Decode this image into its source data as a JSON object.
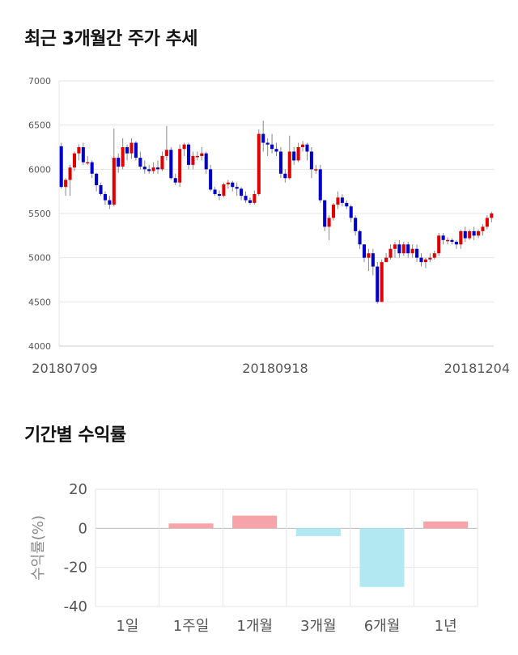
{
  "headings": {
    "stock_trend": "최근 3개월간 주가 추세",
    "period_returns": "기간별 수익률"
  },
  "chart_data": [
    {
      "type": "candlestick",
      "title": "최근 3개월간 주가 추세",
      "ylim": [
        4000,
        7000
      ],
      "y_ticks": [
        4000,
        4500,
        5000,
        5500,
        6000,
        6500,
        7000
      ],
      "x_tick_labels": [
        "20180709",
        "20180918",
        "20181204"
      ],
      "grid": true,
      "colors": {
        "up": "#e00000",
        "down": "#0000cc",
        "wick": "#888888"
      },
      "candles": [
        [
          6260,
          5800,
          6300,
          5780
        ],
        [
          5800,
          5880,
          5900,
          5700
        ],
        [
          5880,
          6020,
          6050,
          5700
        ],
        [
          6020,
          6180,
          6200,
          5980
        ],
        [
          6180,
          6250,
          6280,
          6100
        ],
        [
          6250,
          6080,
          6300,
          6050
        ],
        [
          6080,
          6080,
          6150,
          6050
        ],
        [
          6080,
          5950,
          6100,
          5900
        ],
        [
          5950,
          5820,
          5960,
          5750
        ],
        [
          5820,
          5720,
          5850,
          5700
        ],
        [
          5720,
          5650,
          5750,
          5600
        ],
        [
          5650,
          5600,
          5700,
          5550
        ],
        [
          5600,
          6130,
          6460,
          5580
        ],
        [
          6130,
          6030,
          6180,
          5960
        ],
        [
          6030,
          6250,
          6350,
          6000
        ],
        [
          6250,
          6180,
          6280,
          6100
        ],
        [
          6180,
          6300,
          6350,
          6120
        ],
        [
          6300,
          6130,
          6320,
          6100
        ],
        [
          6130,
          6030,
          6200,
          6000
        ],
        [
          6030,
          6000,
          6100,
          5950
        ],
        [
          6000,
          5980,
          6050,
          5950
        ],
        [
          5980,
          6020,
          6080,
          5950
        ],
        [
          6020,
          6000,
          6100,
          5950
        ],
        [
          6000,
          6150,
          6200,
          5980
        ],
        [
          6150,
          6220,
          6490,
          6100
        ],
        [
          6220,
          5900,
          6250,
          5880
        ],
        [
          5900,
          5850,
          5950,
          5820
        ],
        [
          5850,
          6230,
          6280,
          5800
        ],
        [
          6230,
          6280,
          6300,
          6150
        ],
        [
          6280,
          6050,
          6300,
          6000
        ],
        [
          6050,
          6150,
          6200,
          6000
        ],
        [
          6150,
          6150,
          6200,
          6100
        ],
        [
          6150,
          6180,
          6250,
          6100
        ],
        [
          6180,
          6000,
          6200,
          5950
        ],
        [
          6000,
          5770,
          6050,
          5750
        ],
        [
          5770,
          5720,
          5800,
          5700
        ],
        [
          5720,
          5700,
          5760,
          5650
        ],
        [
          5700,
          5830,
          5850,
          5680
        ],
        [
          5830,
          5850,
          5880,
          5780
        ],
        [
          5850,
          5800,
          5870,
          5750
        ],
        [
          5800,
          5780,
          5850,
          5700
        ],
        [
          5780,
          5700,
          5800,
          5650
        ],
        [
          5700,
          5650,
          5750,
          5620
        ],
        [
          5650,
          5620,
          5680,
          5600
        ],
        [
          5620,
          5720,
          5760,
          5600
        ],
        [
          5720,
          6400,
          6450,
          5700
        ],
        [
          6400,
          6300,
          6550,
          6200
        ],
        [
          6300,
          6280,
          6350,
          6150
        ],
        [
          6280,
          6230,
          6400,
          6180
        ],
        [
          6230,
          6200,
          6300,
          6150
        ],
        [
          6200,
          5950,
          6250,
          5900
        ],
        [
          5950,
          5900,
          6000,
          5850
        ],
        [
          5900,
          6200,
          6380,
          5880
        ],
        [
          6200,
          6100,
          6250,
          6050
        ],
        [
          6100,
          6250,
          6300,
          6080
        ],
        [
          6250,
          6280,
          6320,
          6200
        ],
        [
          6280,
          6200,
          6300,
          6100
        ],
        [
          6200,
          6000,
          6250,
          5900
        ],
        [
          6000,
          6000,
          6050,
          5950
        ],
        [
          6000,
          5650,
          6050,
          5620
        ],
        [
          5650,
          5350,
          5650,
          5300
        ],
        [
          5350,
          5450,
          5480,
          5200
        ],
        [
          5450,
          5600,
          5620,
          5420
        ],
        [
          5600,
          5680,
          5750,
          5550
        ],
        [
          5680,
          5620,
          5720,
          5580
        ],
        [
          5620,
          5580,
          5650,
          5550
        ],
        [
          5580,
          5450,
          5600,
          5400
        ],
        [
          5450,
          5300,
          5480,
          5250
        ],
        [
          5300,
          5150,
          5320,
          5100
        ],
        [
          5150,
          5000,
          5150,
          4950
        ],
        [
          5000,
          5050,
          5100,
          4850
        ],
        [
          5050,
          4900,
          5100,
          4800
        ],
        [
          4900,
          4500,
          4950,
          4480
        ],
        [
          4500,
          4950,
          4980,
          4500
        ],
        [
          4950,
          5000,
          5050,
          4950
        ],
        [
          5000,
          5100,
          5150,
          4980
        ],
        [
          5100,
          5150,
          5180,
          5000
        ],
        [
          5150,
          5050,
          5200,
          5000
        ],
        [
          5050,
          5150,
          5180,
          5020
        ],
        [
          5150,
          5050,
          5180,
          5000
        ],
        [
          5050,
          5100,
          5150,
          5000
        ],
        [
          5100,
          5000,
          5150,
          4950
        ],
        [
          5000,
          4950,
          5050,
          4900
        ],
        [
          4950,
          4980,
          5000,
          4880
        ],
        [
          4980,
          5000,
          5050,
          4950
        ],
        [
          5000,
          5050,
          5080,
          4980
        ],
        [
          5050,
          5250,
          5280,
          5020
        ],
        [
          5250,
          5200,
          5280,
          5150
        ],
        [
          5200,
          5200,
          5230,
          5150
        ],
        [
          5200,
          5180,
          5220,
          5150
        ],
        [
          5180,
          5150,
          5200,
          5100
        ],
        [
          5150,
          5300,
          5320,
          5100
        ],
        [
          5300,
          5220,
          5350,
          5180
        ],
        [
          5220,
          5300,
          5320,
          5200
        ],
        [
          5300,
          5250,
          5350,
          5200
        ],
        [
          5250,
          5300,
          5320,
          5220
        ],
        [
          5300,
          5350,
          5380,
          5250
        ],
        [
          5350,
          5450,
          5480,
          5320
        ],
        [
          5450,
          5500,
          5520,
          5400
        ]
      ]
    },
    {
      "type": "bar",
      "title": "기간별 수익률",
      "ylabel": "수익률(%)",
      "categories": [
        "1일",
        "1주일",
        "1개월",
        "3개월",
        "6개월",
        "1년"
      ],
      "values": [
        0,
        2.5,
        6.5,
        -4.0,
        -30.0,
        3.5
      ],
      "ylim": [
        -40,
        20
      ],
      "y_ticks": [
        -40,
        -20,
        0,
        20
      ],
      "grid": true,
      "colors": {
        "positive": "#f7a4a9",
        "negative": "#b2e8f2"
      }
    }
  ]
}
